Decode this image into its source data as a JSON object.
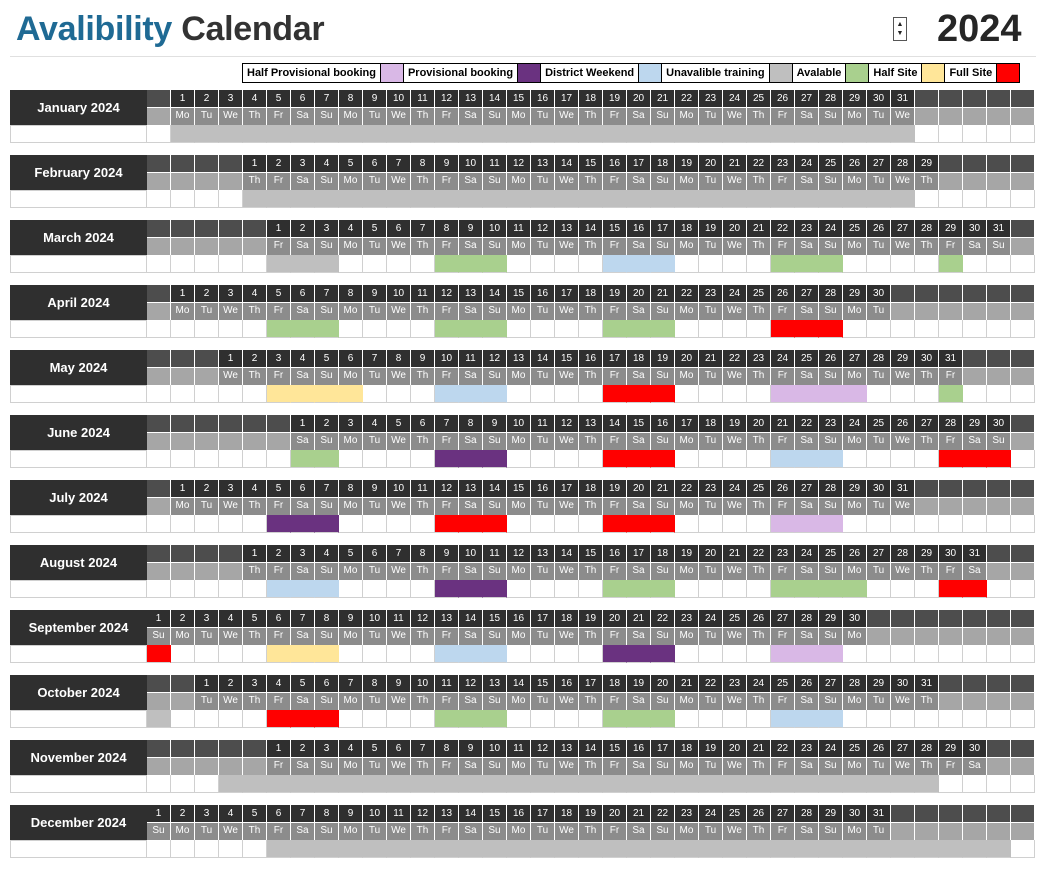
{
  "header": {
    "title_part1": "Avalibility",
    "title_part2": "Calendar",
    "year": "2024",
    "spinner_up": "▲",
    "spinner_down": "▼"
  },
  "legend": [
    {
      "label": "Half Provisional booking",
      "color": "#d9b8e6"
    },
    {
      "label": "Provisional booking",
      "color": "#6a3280"
    },
    {
      "label": "District Weekend",
      "color": "#bdd7ee"
    },
    {
      "label": "Unavalible training",
      "color": "#bfbfbf"
    },
    {
      "label": "Avalable",
      "color": "#a9d08e"
    },
    {
      "label": "Half Site",
      "color": "#ffe699"
    },
    {
      "label": "Full Site",
      "color": "#ff0000"
    }
  ],
  "colors": {
    "half_provisional": "#d9b8e6",
    "provisional": "#6a3280",
    "district_weekend": "#bdd7ee",
    "unavailable_training": "#bfbfbf",
    "available": "#a9d08e",
    "half_site": "#ffe699",
    "full_site": "#ff0000"
  },
  "day_abbreviations": [
    "Mo",
    "Tu",
    "We",
    "Th",
    "Fr",
    "Sa",
    "Su"
  ],
  "months": [
    {
      "name": "January 2024",
      "offset": 1,
      "days": 31,
      "weekdays": [
        "Mo",
        "Tu",
        "We",
        "Th",
        "Fr",
        "Sa",
        "Su",
        "Mo",
        "Tu",
        "We",
        "Th",
        "Fr",
        "Sa",
        "Su",
        "Mo",
        "Tu",
        "We",
        "Th",
        "Fr",
        "Sa",
        "Su",
        "Mo",
        "Tu",
        "We",
        "Th",
        "Fr",
        "Sa",
        "Su",
        "Mo",
        "Tu",
        "We"
      ],
      "status": [
        {
          "from": 1,
          "to": 31,
          "key": "unavailable_training"
        }
      ]
    },
    {
      "name": "February 2024",
      "offset": 4,
      "days": 29,
      "weekdays": [
        "Th",
        "Fr",
        "Sa",
        "Su",
        "Mo",
        "Tu",
        "We",
        "Th",
        "Fr",
        "Sa",
        "Su",
        "Mo",
        "Tu",
        "We",
        "Th",
        "Fr",
        "Sa",
        "Su",
        "Mo",
        "Tu",
        "We",
        "Th",
        "Fr",
        "Sa",
        "Su",
        "Mo",
        "Tu",
        "We",
        "Th"
      ],
      "status": [
        {
          "from": 1,
          "to": 28,
          "key": "unavailable_training"
        }
      ]
    },
    {
      "name": "March 2024",
      "offset": 5,
      "days": 31,
      "weekdays": [
        "Fr",
        "Sa",
        "Su",
        "Mo",
        "Tu",
        "We",
        "Th",
        "Fr",
        "Sa",
        "Su",
        "Mo",
        "Tu",
        "We",
        "Th",
        "Fr",
        "Sa",
        "Su",
        "Mo",
        "Tu",
        "We",
        "Th",
        "Fr",
        "Sa",
        "Su",
        "Mo",
        "Tu",
        "We",
        "Th",
        "Fr",
        "Sa",
        "Su"
      ],
      "status": [
        {
          "from": 1,
          "to": 3,
          "key": "unavailable_training"
        },
        {
          "from": 8,
          "to": 10,
          "key": "available"
        },
        {
          "from": 15,
          "to": 17,
          "key": "district_weekend"
        },
        {
          "from": 22,
          "to": 24,
          "key": "available"
        },
        {
          "from": 29,
          "to": 29,
          "key": "available"
        }
      ]
    },
    {
      "name": "April 2024",
      "offset": 1,
      "days": 30,
      "weekdays": [
        "Mo",
        "Tu",
        "We",
        "Th",
        "Fr",
        "Sa",
        "Su",
        "Mo",
        "Tu",
        "We",
        "Th",
        "Fr",
        "Sa",
        "Su",
        "Mo",
        "Tu",
        "We",
        "Th",
        "Fr",
        "Sa",
        "Su",
        "Mo",
        "Tu",
        "We",
        "Th",
        "Fr",
        "Sa",
        "Su",
        "Mo",
        "Tu"
      ],
      "status": [
        {
          "from": 5,
          "to": 7,
          "key": "available"
        },
        {
          "from": 12,
          "to": 14,
          "key": "available"
        },
        {
          "from": 19,
          "to": 21,
          "key": "available"
        },
        {
          "from": 26,
          "to": 28,
          "key": "full_site"
        }
      ]
    },
    {
      "name": "May 2024",
      "offset": 3,
      "days": 31,
      "weekdays": [
        "We",
        "Th",
        "Fr",
        "Sa",
        "Su",
        "Mo",
        "Tu",
        "We",
        "Th",
        "Fr",
        "Sa",
        "Su",
        "Mo",
        "Tu",
        "We",
        "Th",
        "Fr",
        "Sa",
        "Su",
        "Mo",
        "Tu",
        "We",
        "Th",
        "Fr",
        "Sa",
        "Su",
        "Mo",
        "Tu",
        "We",
        "Th",
        "Fr"
      ],
      "status": [
        {
          "from": 3,
          "to": 6,
          "key": "half_site"
        },
        {
          "from": 10,
          "to": 12,
          "key": "district_weekend"
        },
        {
          "from": 17,
          "to": 19,
          "key": "full_site"
        },
        {
          "from": 24,
          "to": 27,
          "key": "half_provisional"
        },
        {
          "from": 31,
          "to": 31,
          "key": "available"
        }
      ]
    },
    {
      "name": "June 2024",
      "offset": 6,
      "days": 30,
      "weekdays": [
        "Sa",
        "Su",
        "Mo",
        "Tu",
        "We",
        "Th",
        "Fr",
        "Sa",
        "Su",
        "Mo",
        "Tu",
        "We",
        "Th",
        "Fr",
        "Sa",
        "Su",
        "Mo",
        "Tu",
        "We",
        "Th",
        "Fr",
        "Sa",
        "Su",
        "Mo",
        "Tu",
        "We",
        "Th",
        "Fr",
        "Sa",
        "Su"
      ],
      "status": [
        {
          "from": 1,
          "to": 2,
          "key": "available"
        },
        {
          "from": 7,
          "to": 9,
          "key": "provisional"
        },
        {
          "from": 14,
          "to": 16,
          "key": "full_site"
        },
        {
          "from": 21,
          "to": 23,
          "key": "district_weekend"
        },
        {
          "from": 28,
          "to": 30,
          "key": "full_site"
        }
      ]
    },
    {
      "name": "July 2024",
      "offset": 1,
      "days": 31,
      "weekdays": [
        "Mo",
        "Tu",
        "We",
        "Th",
        "Fr",
        "Sa",
        "Su",
        "Mo",
        "Tu",
        "We",
        "Th",
        "Fr",
        "Sa",
        "Su",
        "Mo",
        "Tu",
        "We",
        "Th",
        "Fr",
        "Sa",
        "Su",
        "Mo",
        "Tu",
        "We",
        "Th",
        "Fr",
        "Sa",
        "Su",
        "Mo",
        "Tu",
        "We"
      ],
      "status": [
        {
          "from": 5,
          "to": 7,
          "key": "provisional"
        },
        {
          "from": 12,
          "to": 14,
          "key": "full_site"
        },
        {
          "from": 19,
          "to": 21,
          "key": "full_site"
        },
        {
          "from": 26,
          "to": 28,
          "key": "half_provisional"
        }
      ]
    },
    {
      "name": "August 2024",
      "offset": 4,
      "days": 31,
      "weekdays": [
        "Th",
        "Fr",
        "Sa",
        "Su",
        "Mo",
        "Tu",
        "We",
        "Th",
        "Fr",
        "Sa",
        "Su",
        "Mo",
        "Tu",
        "We",
        "Th",
        "Fr",
        "Sa",
        "Su",
        "Mo",
        "Tu",
        "We",
        "Th",
        "Fr",
        "Sa",
        "Su",
        "Mo",
        "Tu",
        "We",
        "Th",
        "Fr",
        "Sa"
      ],
      "status": [
        {
          "from": 2,
          "to": 4,
          "key": "district_weekend"
        },
        {
          "from": 9,
          "to": 11,
          "key": "provisional"
        },
        {
          "from": 16,
          "to": 18,
          "key": "available"
        },
        {
          "from": 23,
          "to": 26,
          "key": "available"
        },
        {
          "from": 30,
          "to": 31,
          "key": "full_site"
        }
      ]
    },
    {
      "name": "September 2024",
      "offset": 0,
      "days": 30,
      "weekdays": [
        "Su",
        "Mo",
        "Tu",
        "We",
        "Th",
        "Fr",
        "Sa",
        "Su",
        "Mo",
        "Tu",
        "We",
        "Th",
        "Fr",
        "Sa",
        "Su",
        "Mo",
        "Tu",
        "We",
        "Th",
        "Fr",
        "Sa",
        "Su",
        "Mo",
        "Tu",
        "We",
        "Th",
        "Fr",
        "Sa",
        "Su",
        "Mo"
      ],
      "status": [
        {
          "from": 1,
          "to": 1,
          "key": "full_site"
        },
        {
          "from": 6,
          "to": 8,
          "key": "half_site"
        },
        {
          "from": 13,
          "to": 15,
          "key": "district_weekend"
        },
        {
          "from": 20,
          "to": 22,
          "key": "provisional"
        },
        {
          "from": 27,
          "to": 29,
          "key": "half_provisional"
        }
      ]
    },
    {
      "name": "October 2024",
      "offset": 2,
      "days": 31,
      "weekdays": [
        "Tu",
        "We",
        "Th",
        "Fr",
        "Sa",
        "Su",
        "Mo",
        "Tu",
        "We",
        "Th",
        "Fr",
        "Sa",
        "Su",
        "Mo",
        "Tu",
        "We",
        "Th",
        "Fr",
        "Sa",
        "Su",
        "Mo",
        "Tu",
        "We",
        "Th",
        "Fr",
        "Sa",
        "Su",
        "Mo",
        "Tu",
        "We",
        "Th"
      ],
      "status": [
        {
          "pad": 0,
          "key": "unavailable_training"
        },
        {
          "from": 4,
          "to": 6,
          "key": "full_site"
        },
        {
          "from": 11,
          "to": 13,
          "key": "available"
        },
        {
          "from": 18,
          "to": 20,
          "key": "available"
        },
        {
          "from": 25,
          "to": 27,
          "key": "district_weekend"
        }
      ]
    },
    {
      "name": "November 2024",
      "offset": 5,
      "days": 30,
      "weekdays": [
        "Fr",
        "Sa",
        "Su",
        "Mo",
        "Tu",
        "We",
        "Th",
        "Fr",
        "Sa",
        "Su",
        "Mo",
        "Tu",
        "We",
        "Th",
        "Fr",
        "Sa",
        "Su",
        "Mo",
        "Tu",
        "We",
        "Th",
        "Fr",
        "Sa",
        "Su",
        "Mo",
        "Tu",
        "We",
        "Th",
        "Fr",
        "Sa"
      ],
      "status": [
        {
          "pad": 3,
          "key": "unavailable_training"
        },
        {
          "pad": 4,
          "key": "unavailable_training"
        },
        {
          "from": 1,
          "to": 28,
          "key": "unavailable_training"
        }
      ]
    },
    {
      "name": "December 2024",
      "offset": 0,
      "days": 31,
      "weekdays": [
        "Su",
        "Mo",
        "Tu",
        "We",
        "Th",
        "Fr",
        "Sa",
        "Su",
        "Mo",
        "Tu",
        "We",
        "Th",
        "Fr",
        "Sa",
        "Su",
        "Mo",
        "Tu",
        "We",
        "Th",
        "Fr",
        "Sa",
        "Su",
        "Mo",
        "Tu",
        "We",
        "Th",
        "Fr",
        "Sa",
        "Su",
        "Mo",
        "Tu"
      ],
      "status": [
        {
          "from": 6,
          "to": 31,
          "key": "unavailable_training"
        },
        {
          "pad": 31,
          "key": "unavailable_training"
        },
        {
          "pad": 32,
          "key": "unavailable_training"
        },
        {
          "pad": 33,
          "key": "unavailable_training"
        },
        {
          "pad": 34,
          "key": "unavailable_training"
        },
        {
          "pad": 35,
          "key": "unavailable_training"
        }
      ]
    }
  ]
}
